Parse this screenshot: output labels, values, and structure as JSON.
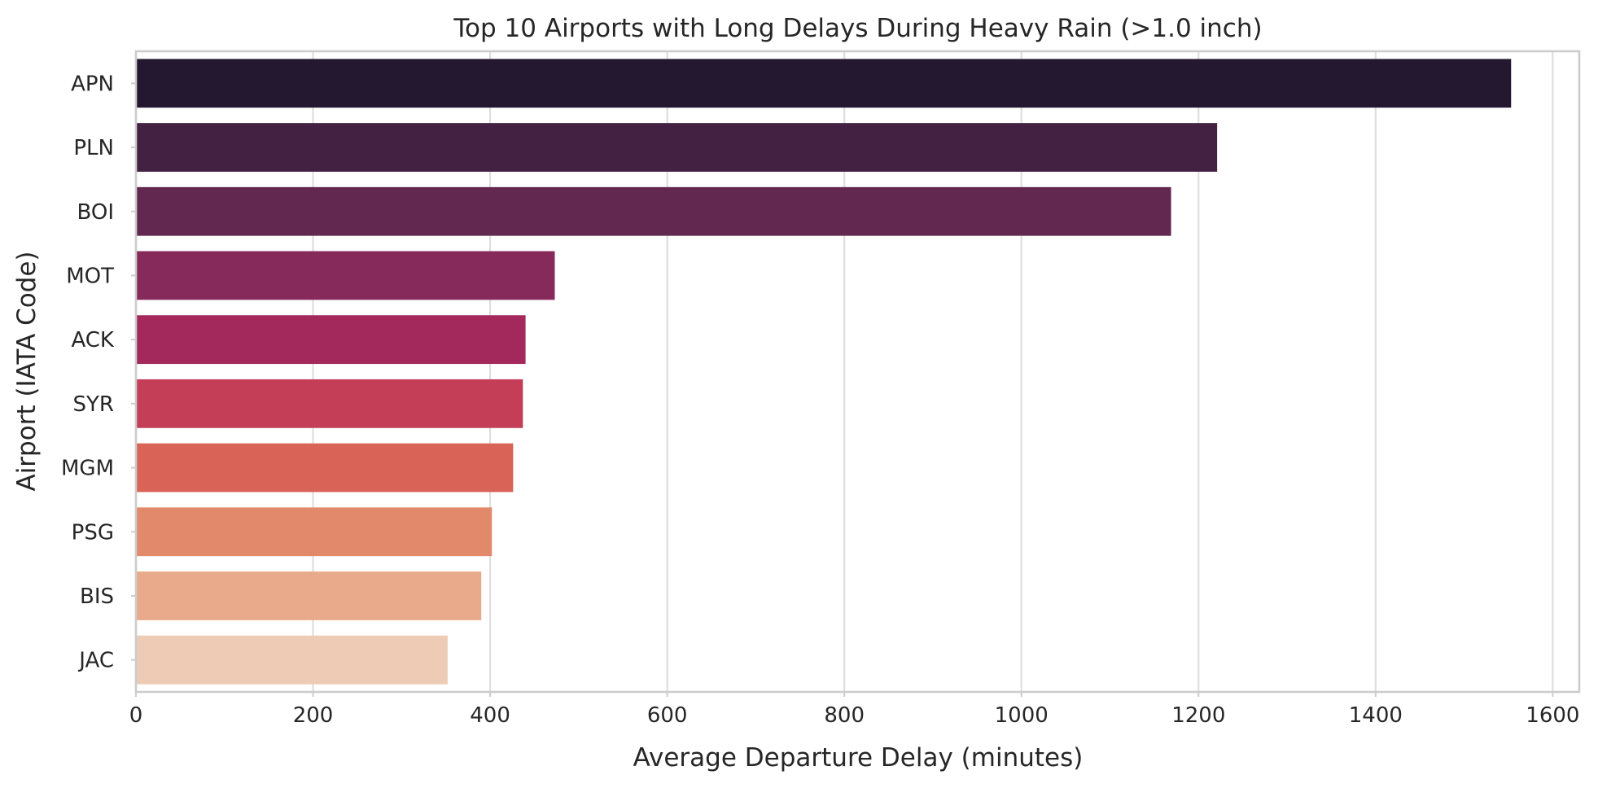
{
  "chart_data": {
    "type": "bar",
    "orientation": "horizontal",
    "title": "Top 10 Airports with Long Delays During Heavy Rain (>1.0 inch)",
    "xlabel": "Average Departure Delay (minutes)",
    "ylabel": "Airport (IATA Code)",
    "categories": [
      "APN",
      "PLN",
      "BOI",
      "MOT",
      "ACK",
      "SYR",
      "MGM",
      "PSG",
      "BIS",
      "JAC"
    ],
    "values": [
      1553,
      1221,
      1169,
      473,
      440,
      437,
      426,
      402,
      390,
      352
    ],
    "colors": [
      "#241830",
      "#432142",
      "#62284f",
      "#852a5a",
      "#a3285b",
      "#c43e57",
      "#d86356",
      "#e1896a",
      "#e8aa8b",
      "#eecbb5"
    ],
    "xlim": [
      0,
      1630
    ],
    "xticks": [
      0,
      200,
      400,
      600,
      800,
      1000,
      1200,
      1400,
      1600
    ],
    "grid": true,
    "legend": "none"
  }
}
